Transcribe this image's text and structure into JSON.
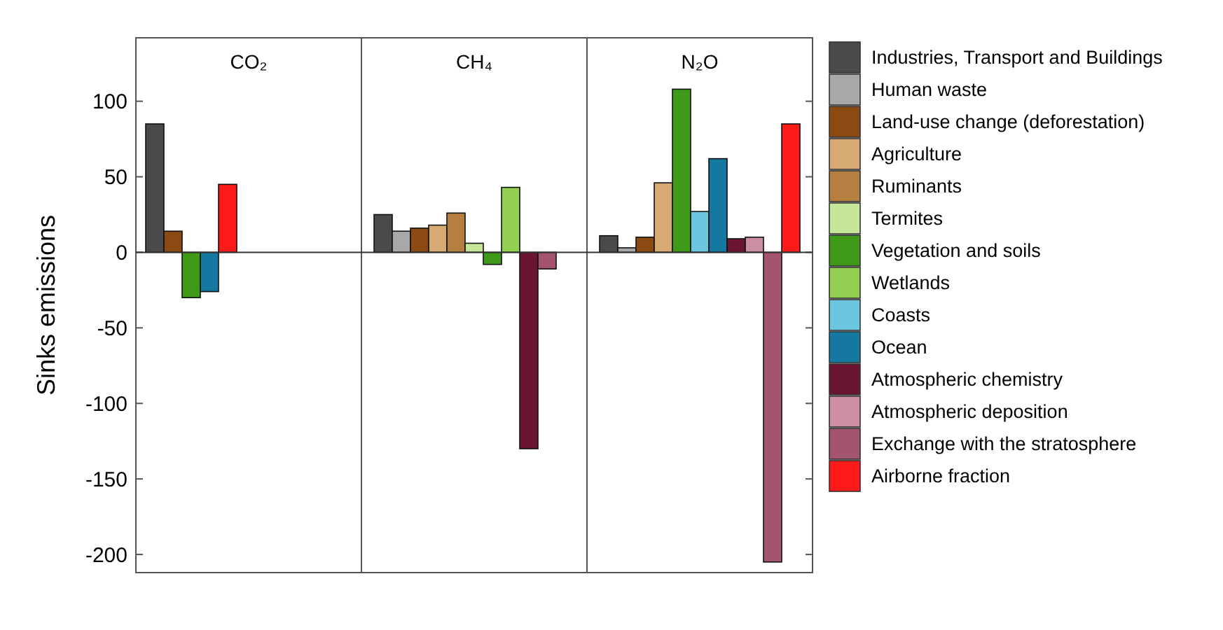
{
  "chart_data": {
    "type": "bar",
    "ylabel": "Sinks emissions",
    "categories": [
      "CO₂",
      "CH₄",
      "N₂O"
    ],
    "ylim": [
      -212,
      142
    ],
    "yticks": [
      -200,
      -150,
      -100,
      -50,
      0,
      50,
      100
    ],
    "legend": "right",
    "series": [
      {
        "name": "Industries, Transport and Buildings",
        "color": "#4a4a4a",
        "values": [
          85,
          25,
          11
        ]
      },
      {
        "name": "Human waste",
        "color": "#a8a8a8",
        "values": [
          null,
          14,
          3
        ]
      },
      {
        "name": "Land-use change (deforestation)",
        "color": "#8b4a12",
        "values": [
          14,
          16,
          10
        ]
      },
      {
        "name": "Agriculture",
        "color": "#d6aa72",
        "values": [
          null,
          18,
          46
        ]
      },
      {
        "name": "Ruminants",
        "color": "#b5803f",
        "values": [
          null,
          26,
          null
        ]
      },
      {
        "name": "Termites",
        "color": "#c6e69a",
        "values": [
          null,
          6,
          null
        ]
      },
      {
        "name": "Vegetation and soils",
        "color": "#3f9a1a",
        "values": [
          -30,
          -8,
          108
        ]
      },
      {
        "name": "Wetlands",
        "color": "#93cf50",
        "values": [
          null,
          43,
          null
        ]
      },
      {
        "name": "Coasts",
        "color": "#6cc6e0",
        "values": [
          null,
          null,
          27
        ]
      },
      {
        "name": "Ocean",
        "color": "#1478a0",
        "values": [
          -26,
          null,
          62
        ]
      },
      {
        "name": "Atmospheric chemistry",
        "color": "#6b1530",
        "values": [
          null,
          -130,
          9
        ]
      },
      {
        "name": "Atmospheric deposition",
        "color": "#cc8ea4",
        "values": [
          null,
          null,
          10
        ]
      },
      {
        "name": "Exchange with the stratosphere",
        "color": "#a4546e",
        "values": [
          null,
          -11,
          -205
        ]
      },
      {
        "name": "Airborne fraction",
        "color": "#ff1a1a",
        "values": [
          45,
          null,
          85
        ]
      }
    ]
  }
}
